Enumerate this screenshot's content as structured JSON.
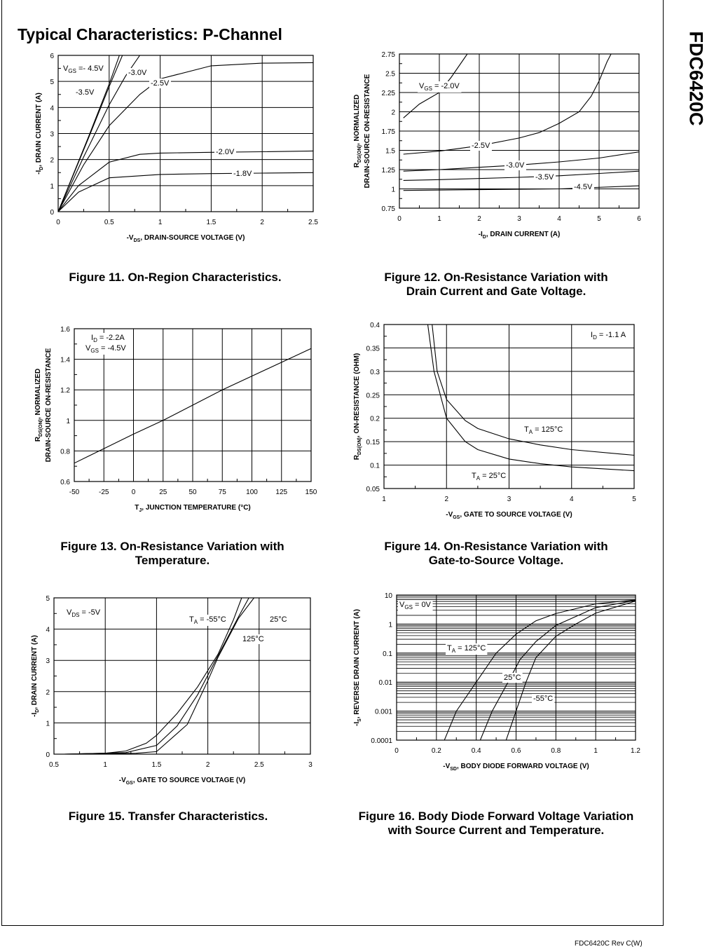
{
  "page": {
    "title": "Typical Characteristics: P-Channel",
    "side_title": "FDC6420C",
    "footer": "FDC6420C Rev C(W)"
  },
  "captions": [
    [
      "Figure 11. On-Region Characteristics."
    ],
    [
      "Figure 12. On-Resistance Variation with",
      "Drain Current and Gate Voltage."
    ],
    [
      "Figure 13. On-Resistance Variation with",
      "Temperature."
    ],
    [
      "Figure 14. On-Resistance Variation with",
      "Gate-to-Source Voltage."
    ],
    [
      "Figure 15. Transfer Characteristics."
    ],
    [
      "Figure 16. Body Diode Forward Voltage Variation",
      "with Source Current and Temperature."
    ]
  ],
  "chart_data": [
    {
      "type": "line",
      "xlabel": [
        [
          "-V",
          "DS",
          ", DRAIN-SOURCE VOLTAGE (V)"
        ]
      ],
      "ylabel": [
        [
          "-I",
          "D",
          ", DRAIN CURRENT (A)"
        ]
      ],
      "xlim": [
        0,
        2.5
      ],
      "ylim": [
        0,
        6
      ],
      "yscale": "linear",
      "grid": true,
      "xticks": [
        0,
        0.5,
        1,
        1.5,
        2,
        2.5
      ],
      "xticklabels": [
        "0",
        "0.5",
        "1",
        "1.5",
        "2",
        "2.5"
      ],
      "yticks": [
        0,
        1,
        2,
        3,
        4,
        5,
        6
      ],
      "yticklabels": [
        "0",
        "1",
        "2",
        "3",
        "4",
        "5",
        "6"
      ],
      "annotations": [
        [
          "V",
          "GS",
          " =- 4.5V"
        ],
        [
          "-3.0V"
        ],
        [
          "-3.5V"
        ],
        [
          "-2.5V"
        ],
        [
          "-2.0V"
        ],
        [
          "-1.8V"
        ]
      ],
      "series": [
        {
          "name": "-4.5V",
          "x": [
            0,
            0.3,
            0.5,
            0.6
          ],
          "y": [
            0,
            2.9,
            4.9,
            6
          ]
        },
        {
          "name": "-3.5V",
          "x": [
            0,
            0.3,
            0.5,
            0.63
          ],
          "y": [
            0,
            2.85,
            4.8,
            6
          ]
        },
        {
          "name": "-3.0V",
          "x": [
            0,
            0.25,
            0.5,
            0.66,
            0.8
          ],
          "y": [
            0,
            2.1,
            4.1,
            5.2,
            6
          ]
        },
        {
          "name": "-2.5V",
          "x": [
            0,
            0.25,
            0.5,
            0.8,
            1,
            1.5,
            2,
            2.5
          ],
          "y": [
            0,
            1.8,
            3.3,
            4.5,
            5.1,
            5.6,
            5.7,
            5.72
          ]
        },
        {
          "name": "-2.0V",
          "x": [
            0,
            0.2,
            0.5,
            0.8,
            1,
            1.5,
            2,
            2.5
          ],
          "y": [
            0,
            1.0,
            1.9,
            2.2,
            2.25,
            2.28,
            2.3,
            2.33
          ]
        },
        {
          "name": "-1.8V",
          "x": [
            0,
            0.2,
            0.5,
            1,
            1.5,
            2,
            2.5
          ],
          "y": [
            0,
            0.75,
            1.3,
            1.43,
            1.46,
            1.48,
            1.5
          ]
        }
      ]
    },
    {
      "type": "line",
      "xlabel": [
        [
          "-I",
          "D",
          ", DRAIN CURRENT (A)"
        ]
      ],
      "ylabel": [
        [
          "R",
          "DS(ON)",
          ", NORMALIZED"
        ],
        [
          "DRAIN-SOURCE ON-RESISTANCE"
        ]
      ],
      "xlim": [
        0,
        6
      ],
      "ylim": [
        0.75,
        2.75
      ],
      "yscale": "linear",
      "grid": true,
      "xticks": [
        0,
        1,
        2,
        3,
        4,
        5,
        6
      ],
      "xticklabels": [
        "0",
        "1",
        "2",
        "3",
        "4",
        "5",
        "6"
      ],
      "yticks": [
        0.75,
        1,
        1.25,
        1.5,
        1.75,
        2,
        2.25,
        2.5,
        2.75
      ],
      "yticklabels": [
        "0.75",
        "1",
        "1.25",
        "1.5",
        "1.75",
        "2",
        "2.25",
        "2.5",
        "2.75"
      ],
      "annotations": [
        [
          "V",
          "GS",
          " = -2.0V"
        ],
        [
          "-2.5V"
        ],
        [
          "-3.0V"
        ],
        [
          "-3.5V"
        ],
        [
          "-4.5V"
        ]
      ],
      "series": [
        {
          "name": "-2.0V",
          "x": [
            0.1,
            0.5,
            1,
            1.3,
            1.7
          ],
          "y": [
            1.92,
            2.1,
            2.25,
            2.45,
            2.75
          ]
        },
        {
          "name": "-2.5V",
          "x": [
            0.1,
            1,
            2,
            3,
            3.5,
            4,
            4.5,
            4.8,
            5,
            5.2,
            5.3
          ],
          "y": [
            1.45,
            1.49,
            1.56,
            1.66,
            1.73,
            1.85,
            2.0,
            2.2,
            2.4,
            2.65,
            2.75
          ]
        },
        {
          "name": "-3.0V",
          "x": [
            0.1,
            1,
            2,
            3,
            4,
            5,
            6
          ],
          "y": [
            1.23,
            1.25,
            1.28,
            1.31,
            1.35,
            1.4,
            1.48
          ]
        },
        {
          "name": "-3.5V",
          "x": [
            0.1,
            1,
            3,
            4,
            5,
            6
          ],
          "y": [
            1.11,
            1.12,
            1.15,
            1.17,
            1.2,
            1.23
          ]
        },
        {
          "name": "-4.5V",
          "x": [
            0.1,
            2,
            4,
            6
          ],
          "y": [
            0.98,
            0.99,
            1.0,
            1.04
          ]
        }
      ]
    },
    {
      "type": "line",
      "xlabel": [
        [
          "T",
          "J",
          ", JUNCTION TEMPERATURE (°C)"
        ]
      ],
      "ylabel": [
        [
          "R",
          "DS(ON)",
          ", NORMALIZED"
        ],
        [
          "DRAIN-SOURCE ON-RESISTANCE"
        ]
      ],
      "xlim": [
        -50,
        150
      ],
      "ylim": [
        0.6,
        1.6
      ],
      "yscale": "linear",
      "grid": true,
      "xticks": [
        -50,
        -25,
        0,
        25,
        50,
        75,
        100,
        125,
        150
      ],
      "xticklabels": [
        "-50",
        "-25",
        "0",
        "25",
        "50",
        "75",
        "100",
        "125",
        "150"
      ],
      "yticks": [
        0.6,
        0.8,
        1,
        1.2,
        1.4,
        1.6
      ],
      "yticklabels": [
        "0.6",
        "0.8",
        "1",
        "1.2",
        "1.4",
        "1.6"
      ],
      "annotations": [
        [
          "I",
          "D",
          " = -2.2A"
        ],
        [
          "V",
          "GS",
          " = -4.5V"
        ]
      ],
      "series": [
        {
          "x": [
            -50,
            0,
            25,
            75,
            150
          ],
          "y": [
            0.72,
            0.91,
            1.0,
            1.2,
            1.47
          ]
        }
      ]
    },
    {
      "type": "line",
      "xlabel": [
        [
          "-V",
          "GS",
          ", GATE TO SOURCE VOLTAGE (V)"
        ]
      ],
      "ylabel": [
        [
          "R",
          "DS(ON)",
          ", ON-RESISTANCE (OHM)"
        ]
      ],
      "xlim": [
        1,
        5
      ],
      "ylim": [
        0.05,
        0.4
      ],
      "yscale": "linear",
      "grid": true,
      "xticks": [
        1,
        2,
        3,
        4,
        5
      ],
      "xticklabels": [
        "1",
        "2",
        "3",
        "4",
        "5"
      ],
      "yticks": [
        0.05,
        0.1,
        0.15,
        0.2,
        0.25,
        0.3,
        0.35,
        0.4
      ],
      "yticklabels": [
        "0.05",
        "0.1",
        "0.15",
        "0.2",
        "0.25",
        "0.3",
        "0.35",
        "0.4"
      ],
      "annotations": [
        [
          "I",
          "D",
          " = -1.1 A"
        ],
        [
          "T",
          "A",
          " = 125°C"
        ],
        [
          "T",
          "A",
          " = 25°C"
        ]
      ],
      "series": [
        {
          "name": "T_A = 25°C",
          "x": [
            1.7,
            1.8,
            2,
            2.3,
            2.5,
            3,
            3.5,
            4,
            5
          ],
          "y": [
            0.4,
            0.3,
            0.2,
            0.15,
            0.133,
            0.113,
            0.103,
            0.096,
            0.088
          ]
        },
        {
          "name": "T_A = 125°C",
          "x": [
            1.77,
            1.85,
            2,
            2.3,
            2.5,
            3,
            3.5,
            4,
            5
          ],
          "y": [
            0.4,
            0.3,
            0.24,
            0.195,
            0.178,
            0.156,
            0.143,
            0.133,
            0.121
          ]
        }
      ]
    },
    {
      "type": "line",
      "xlabel": [
        [
          "-V",
          "GS",
          ", GATE TO SOURCE VOLTAGE (V)"
        ]
      ],
      "ylabel": [
        [
          "-I",
          "D",
          ", DRAIN CURRENT (A)"
        ]
      ],
      "xlim": [
        0.5,
        3
      ],
      "ylim": [
        0,
        5
      ],
      "yscale": "linear",
      "grid": true,
      "xticks": [
        0.5,
        1,
        1.5,
        2,
        2.5,
        3
      ],
      "xticklabels": [
        "0.5",
        "1",
        "1.5",
        "2",
        "2.5",
        "3"
      ],
      "yticks": [
        0,
        1,
        2,
        3,
        4,
        5
      ],
      "yticklabels": [
        "0",
        "1",
        "2",
        "3",
        "4",
        "5"
      ],
      "annotations": [
        [
          "V",
          "DS",
          " = -5V"
        ],
        [
          "T",
          "A",
          " = -55°C"
        ],
        [
          "25°C"
        ],
        [
          "125°C"
        ]
      ],
      "series": [
        {
          "name": "-55°C",
          "x": [
            0.6,
            1,
            1.2,
            1.4,
            1.5,
            1.7,
            1.9,
            2.1,
            2.25,
            2.33
          ],
          "y": [
            0,
            0.03,
            0.1,
            0.35,
            0.6,
            1.3,
            2.15,
            3.2,
            4.3,
            5
          ]
        },
        {
          "name": "25°C",
          "x": [
            0.6,
            1.2,
            1.5,
            1.7,
            1.9,
            2.1,
            2.3,
            2.4
          ],
          "y": [
            0,
            0.05,
            0.28,
            0.9,
            1.9,
            3.15,
            4.4,
            5
          ]
        },
        {
          "name": "125°C",
          "x": [
            0.6,
            1.3,
            1.5,
            1.8,
            2,
            2.1,
            2.3,
            2.45
          ],
          "y": [
            0,
            0.03,
            0.08,
            0.95,
            2.35,
            3.1,
            4.35,
            5
          ]
        }
      ]
    },
    {
      "type": "line",
      "xlabel": [
        [
          "-V",
          "SD",
          ", BODY DIODE FORWARD VOLTAGE (V)"
        ]
      ],
      "ylabel": [
        [
          "-I",
          "S",
          ", REVERSE DRAIN CURRENT (A)"
        ]
      ],
      "xlim": [
        0,
        1.2
      ],
      "ylim": [
        0.0001,
        10
      ],
      "yscale": "log",
      "grid": true,
      "xticks": [
        0,
        0.2,
        0.4,
        0.6,
        0.8,
        1,
        1.2
      ],
      "xticklabels": [
        "0",
        "0.2",
        "0.4",
        "0.6",
        "0.8",
        "1",
        "1.2"
      ],
      "yticks": [
        0.0001,
        0.001,
        0.01,
        0.1,
        1,
        10
      ],
      "yticklabels": [
        "0.0001",
        "0.001",
        "0.01",
        "0.1",
        "1",
        "10"
      ],
      "annotations": [
        [
          "V",
          "GS",
          " = 0V"
        ],
        [
          "T",
          "A",
          " = 125°C"
        ],
        [
          "25°C"
        ],
        [
          "-55°C"
        ]
      ],
      "series": [
        {
          "name": "125°C",
          "x": [
            0.24,
            0.3,
            0.4,
            0.5,
            0.6,
            0.7,
            0.8,
            1,
            1.2
          ],
          "y": [
            0.0001,
            0.001,
            0.01,
            0.1,
            0.45,
            1.3,
            2.3,
            5,
            6.8
          ]
        },
        {
          "name": "25°C",
          "x": [
            0.42,
            0.48,
            0.56,
            0.62,
            0.7,
            0.8,
            1.0,
            1.2
          ],
          "y": [
            0.0001,
            0.001,
            0.01,
            0.06,
            0.25,
            0.9,
            3.7,
            6.5
          ]
        },
        {
          "name": "-55°C",
          "x": [
            0.55,
            0.6,
            0.65,
            0.7,
            0.8,
            0.9,
            1.0,
            1.2
          ],
          "y": [
            0.0001,
            0.001,
            0.01,
            0.07,
            0.38,
            1.0,
            2.4,
            6.2
          ]
        }
      ]
    }
  ]
}
